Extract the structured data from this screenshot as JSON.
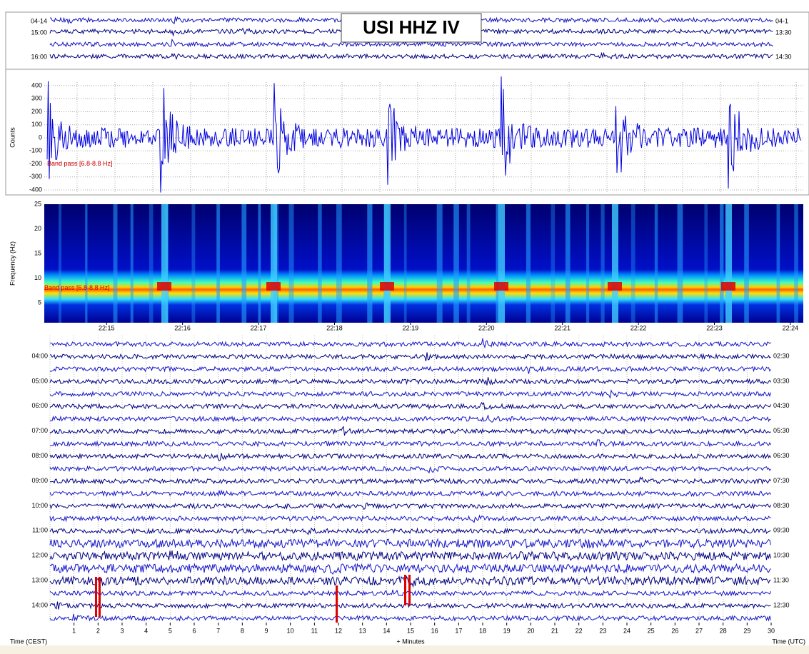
{
  "chart_data": [
    {
      "type": "helicorder",
      "title": "USI HHZ IV",
      "left_labels": [
        "04-14",
        "15:00",
        "16:00"
      ],
      "right_labels": [
        "04-1",
        "13:30",
        "14:30"
      ]
    },
    {
      "type": "line",
      "ylabel": "Counts",
      "ylim": [
        -422,
        427
      ],
      "yticks": [
        400,
        300,
        200,
        100,
        0,
        -100,
        -200,
        -300,
        -400
      ],
      "annotation": "Band pass [6.8-8.8 Hz]"
    },
    {
      "type": "heatmap",
      "ylabel": "Frequency (Hz)",
      "ylim": [
        1,
        25
      ],
      "yticks": [
        5,
        10,
        15,
        20,
        25
      ],
      "annotation": "Band pass [6.8-8.8 Hz]",
      "xlim": [
        14.18,
        24.17
      ],
      "xticks": [
        {
          "value": 15,
          "label": "22:15"
        },
        {
          "value": 16,
          "label": "22:16"
        },
        {
          "value": 17,
          "label": "22:17"
        },
        {
          "value": 18,
          "label": "22:18"
        },
        {
          "value": 19,
          "label": "22:19"
        },
        {
          "value": 20,
          "label": "22:20"
        },
        {
          "value": 21,
          "label": "22:21"
        },
        {
          "value": 22,
          "label": "22:22"
        },
        {
          "value": 23,
          "label": "22:23"
        },
        {
          "value": 24,
          "label": "22:24"
        }
      ]
    },
    {
      "type": "helicorder",
      "left_labels": [
        "04:00",
        "05:00",
        "06:00",
        "07:00",
        "08:00",
        "09:00",
        "10:00",
        "11:00",
        "12:00",
        "13:00",
        "14:00"
      ],
      "right_labels": [
        "02:30",
        "03:30",
        "04:30",
        "05:30",
        "06:30",
        "07:30",
        "08:30",
        "09:30",
        "10:30",
        "11:30",
        "12:30"
      ],
      "xlim": [
        0,
        30
      ],
      "xticks": [
        1,
        2,
        3,
        4,
        5,
        6,
        7,
        8,
        9,
        10,
        11,
        12,
        13,
        14,
        15,
        16,
        17,
        18,
        19,
        20,
        21,
        22,
        23,
        24,
        25,
        26,
        27,
        28,
        29,
        30
      ],
      "xlabel": "+ Minutes",
      "left_axis_label": "Time (CEST)",
      "right_axis_label": "Time (UTC)"
    }
  ]
}
